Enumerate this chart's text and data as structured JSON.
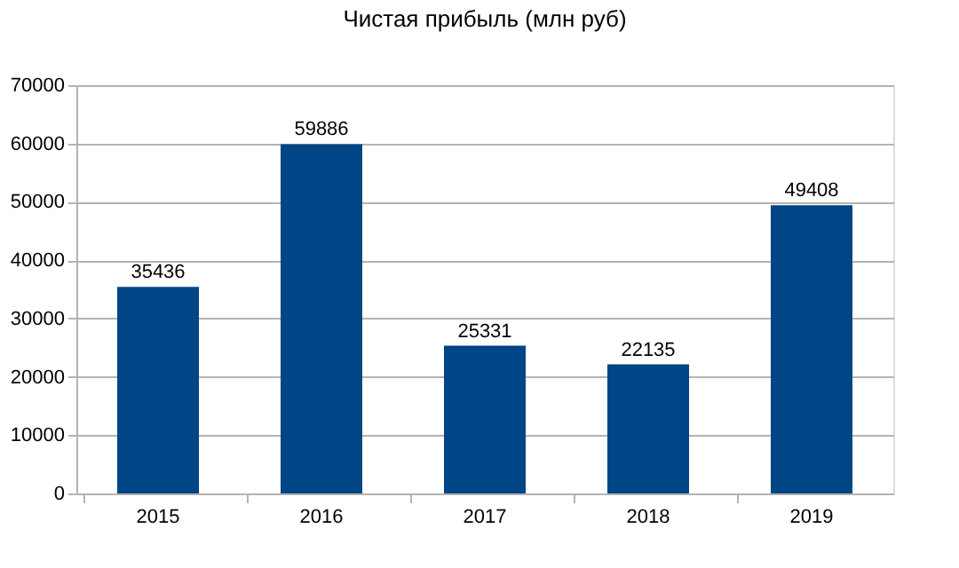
{
  "chart_data": {
    "type": "bar",
    "title": "Чистая прибыль (млн руб)",
    "categories": [
      "2015",
      "2016",
      "2017",
      "2018",
      "2019"
    ],
    "values": [
      35436,
      59886,
      25331,
      22135,
      49408
    ],
    "color": "#004586",
    "ylim": [
      0,
      70000
    ],
    "yticks": [
      0,
      10000,
      20000,
      30000,
      40000,
      50000,
      60000,
      70000
    ],
    "grid": "y",
    "data_labels": true
  }
}
